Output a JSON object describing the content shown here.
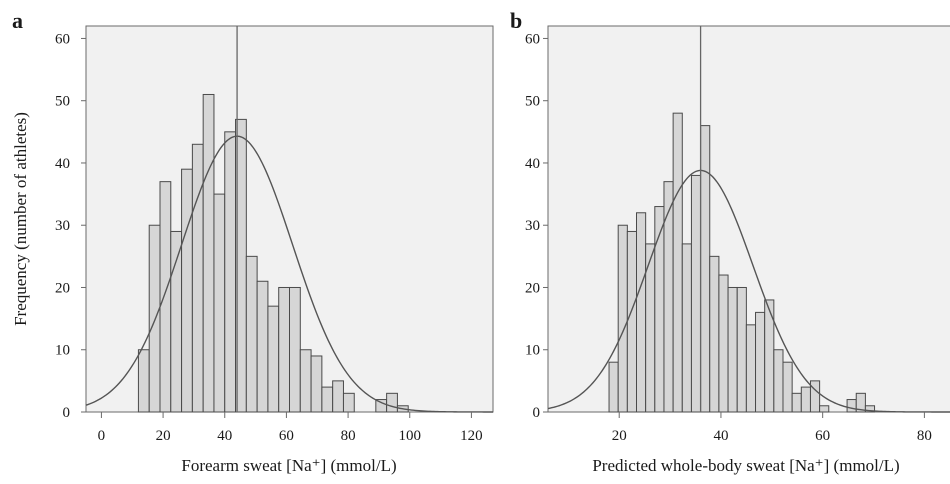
{
  "chart_data": [
    {
      "panel": "a",
      "type": "bar",
      "subtype": "histogram-with-normal-curve",
      "title": "",
      "xlabel": "Forearm sweat [Na⁺] (mmol/L)",
      "ylabel": "Frequency (number of athletes)",
      "xlim": [
        -5,
        127
      ],
      "ylim": [
        0,
        62
      ],
      "xticks": [
        0,
        20,
        40,
        60,
        80,
        100,
        120
      ],
      "yticks": [
        0,
        10,
        20,
        30,
        40,
        50,
        60
      ],
      "bin_width": 3.5,
      "bin_starts": [
        12,
        15.5,
        19,
        22.5,
        26,
        29.5,
        33,
        36.5,
        40,
        43.5,
        47,
        50.5,
        54,
        57.5,
        61,
        64.5,
        68,
        71.5,
        75,
        78.5,
        82,
        85.5,
        89,
        92.5,
        96,
        99.5,
        103
      ],
      "values": [
        10,
        30,
        37,
        29,
        39,
        43,
        51,
        35,
        45,
        47,
        25,
        21,
        17,
        20,
        20,
        10,
        9,
        4,
        5,
        3,
        0,
        0,
        2,
        3,
        1,
        0,
        0
      ],
      "mean_line_x": 44,
      "normal_curve": {
        "mean": 44,
        "sd": 18,
        "peak": 44.3
      },
      "grid": false
    },
    {
      "panel": "b",
      "type": "bar",
      "subtype": "histogram-with-normal-curve",
      "title": "",
      "xlabel": "Predicted whole-body sweat [Na⁺] (mmol/L)",
      "ylabel": "",
      "xlim": [
        6,
        87
      ],
      "ylim": [
        0,
        62
      ],
      "xticks": [
        20,
        40,
        60,
        80
      ],
      "yticks": [
        0,
        10,
        20,
        30,
        40,
        50,
        60
      ],
      "bin_width": 1.8,
      "bin_starts": [
        18,
        19.8,
        21.6,
        23.4,
        25.2,
        27,
        28.8,
        30.6,
        32.4,
        34.2,
        36,
        37.8,
        39.6,
        41.4,
        43.2,
        45,
        46.8,
        48.6,
        50.4,
        52.2,
        54,
        55.8,
        57.6,
        59.4,
        61.2,
        63,
        64.8,
        66.6,
        68.4,
        70.2
      ],
      "values": [
        8,
        30,
        29,
        32,
        27,
        33,
        37,
        48,
        27,
        38,
        46,
        25,
        22,
        20,
        20,
        14,
        16,
        18,
        10,
        8,
        3,
        4,
        5,
        1,
        0,
        0,
        2,
        3,
        1,
        0
      ],
      "mean_line_x": 36,
      "normal_curve": {
        "mean": 36,
        "sd": 10.3,
        "peak": 38.8
      },
      "grid": false
    }
  ]
}
